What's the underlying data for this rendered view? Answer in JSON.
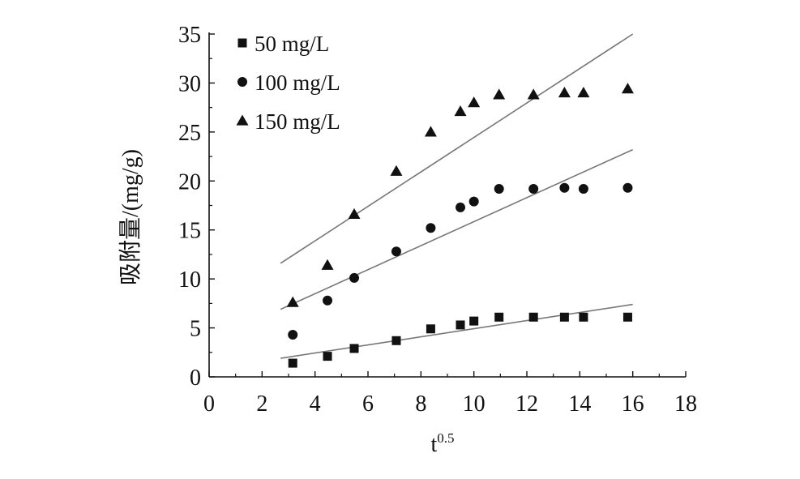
{
  "chart_data": {
    "type": "scatter",
    "xlabel": "t",
    "xlabel_superscript": "0.5",
    "ylabel": "吸附量/(mg/g)",
    "xlim": [
      0,
      18
    ],
    "ylim": [
      0,
      35
    ],
    "xticks": [
      0,
      2,
      4,
      6,
      8,
      10,
      12,
      14,
      16,
      18
    ],
    "yticks": [
      0,
      5,
      10,
      15,
      20,
      25,
      30,
      35
    ],
    "grid": false,
    "legend_position": "top-left",
    "series": [
      {
        "name": "50 mg/L",
        "marker": "square",
        "color": "#111111",
        "x": [
          3.16,
          4.47,
          5.48,
          7.07,
          8.37,
          9.49,
          10.0,
          10.95,
          12.25,
          13.42,
          14.14,
          15.81
        ],
        "y": [
          1.4,
          2.1,
          2.9,
          3.7,
          4.9,
          5.3,
          5.7,
          6.1,
          6.1,
          6.1,
          6.1,
          6.1
        ],
        "fit": {
          "x": [
            2.7,
            16.0
          ],
          "y": [
            1.9,
            7.4
          ]
        }
      },
      {
        "name": "100 mg/L",
        "marker": "circle",
        "color": "#111111",
        "x": [
          3.16,
          4.47,
          5.48,
          7.07,
          8.37,
          9.49,
          10.0,
          10.95,
          12.25,
          13.42,
          14.14,
          15.81
        ],
        "y": [
          4.3,
          7.8,
          10.1,
          12.8,
          15.2,
          17.3,
          17.9,
          19.2,
          19.2,
          19.3,
          19.2,
          19.3
        ],
        "fit": {
          "x": [
            2.7,
            16.0
          ],
          "y": [
            6.9,
            23.2
          ]
        }
      },
      {
        "name": "150 mg/L",
        "marker": "triangle",
        "color": "#111111",
        "x": [
          3.16,
          4.47,
          5.48,
          7.07,
          8.37,
          9.49,
          10.0,
          10.95,
          12.25,
          13.42,
          14.14,
          15.81
        ],
        "y": [
          7.6,
          11.4,
          16.6,
          21.0,
          25.0,
          27.1,
          28.0,
          28.8,
          28.8,
          29.0,
          29.0,
          29.4
        ],
        "fit": {
          "x": [
            2.7,
            16.0
          ],
          "y": [
            11.6,
            35.0
          ]
        }
      }
    ]
  }
}
